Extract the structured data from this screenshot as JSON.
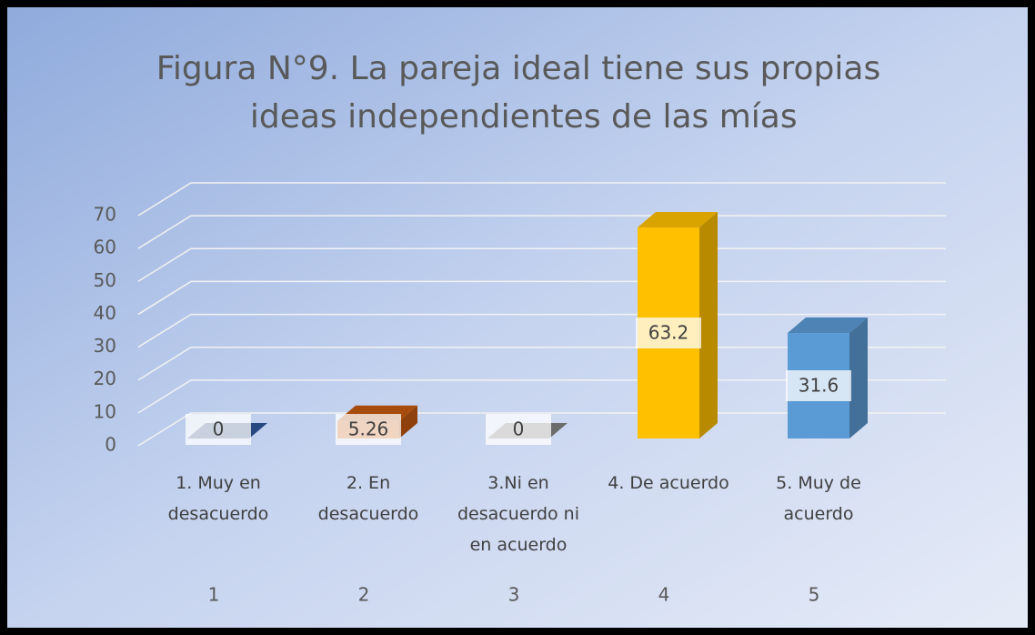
{
  "chart_data": {
    "type": "bar3d",
    "title": "Figura N°9. La pareja ideal tiene sus propias ideas independientes de las mías",
    "categories": [
      "1. Muy en desacuerdo",
      "2. En desacuerdo",
      "3.Ni en desacuerdo ni en acuerdo",
      "4. De acuerdo",
      "5. Muy de acuerdo"
    ],
    "category_numbers": [
      "1",
      "2",
      "3",
      "4",
      "5"
    ],
    "values": [
      0,
      5.26,
      0,
      63.2,
      31.6
    ],
    "colors": [
      "#2f5597",
      "#c55a11",
      "#7f7f7f",
      "#ffc000",
      "#5b9bd5"
    ],
    "ylim": [
      0,
      70
    ],
    "yticks": [
      0,
      10,
      20,
      30,
      40,
      50,
      60,
      70
    ],
    "grid": true
  }
}
